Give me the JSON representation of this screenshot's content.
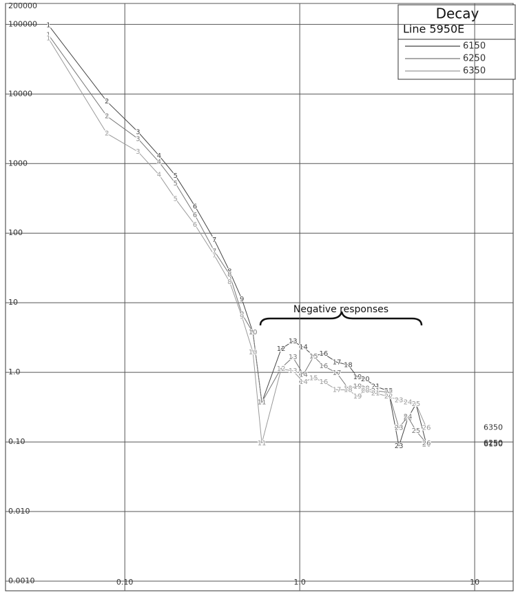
{
  "chart_data": {
    "type": "line",
    "title": "Decay",
    "subtitle": "Line 5950E",
    "annotation": "Negative responses",
    "log_x": true,
    "log_y": true,
    "grid": true,
    "legend": "top-right",
    "xlim": [
      0.0208,
      16.6
    ],
    "xticks": [
      {
        "value": 0.1,
        "label": "0.10"
      },
      {
        "value": 1,
        "label": "1.0"
      },
      10
    ],
    "ylim": [
      0.000726,
      200000
    ],
    "yticks": [
      {
        "value": 0.001,
        "label": "0.0010"
      },
      {
        "value": 0.01,
        "label": "0.010"
      },
      {
        "value": 0.1,
        "label": "0.10"
      },
      {
        "value": 1,
        "label": "1.0"
      },
      10,
      100,
      1000,
      10000,
      100000,
      200000
    ],
    "point_labels": [
      1,
      2,
      3,
      4,
      5,
      6,
      7,
      8,
      9,
      10,
      11,
      12,
      13,
      14,
      15,
      16,
      17,
      18,
      19,
      20,
      21,
      22,
      23,
      24,
      25,
      26
    ],
    "x": [
      0.0366,
      0.079,
      0.119,
      0.157,
      0.195,
      0.252,
      0.325,
      0.397,
      0.467,
      0.54,
      0.607,
      0.783,
      0.914,
      1.05,
      1.2,
      1.37,
      1.63,
      1.89,
      2.14,
      2.37,
      2.71,
      3.22,
      3.69,
      4.15,
      4.62,
      5.3
    ],
    "series": [
      {
        "name": "6150",
        "color": "#444444",
        "values": [
          98000,
          7800,
          2850,
          1300,
          670,
          243,
          80,
          28.5,
          11.2,
          3.75,
          0.37,
          2.17,
          2.8,
          2.3,
          1.73,
          1.85,
          1.4,
          1.28,
          0.85,
          0.8,
          0.63,
          0.54,
          0.087,
          0.22,
          0.35,
          0.092
        ]
      },
      {
        "name": "6250",
        "color": "#777777",
        "values": [
          71000,
          4800,
          2270,
          1050,
          520,
          181,
          55,
          25.5,
          6.9,
          3.75,
          0.37,
          1.15,
          1.65,
          0.93,
          1.7,
          1.23,
          0.98,
          0.59,
          0.63,
          0.59,
          0.54,
          0.52,
          0.16,
          0.23,
          0.145,
          0.096
        ]
      },
      {
        "name": "6350",
        "color": "#999999",
        "values": [
          63000,
          2700,
          1480,
          690,
          310,
          132,
          48,
          20,
          6.3,
          1.94,
          0.096,
          1.12,
          1.05,
          0.73,
          0.83,
          0.73,
          0.56,
          0.56,
          0.45,
          0.55,
          0.5,
          0.45,
          0.4,
          0.37,
          0.35,
          0.16
        ]
      }
    ]
  }
}
